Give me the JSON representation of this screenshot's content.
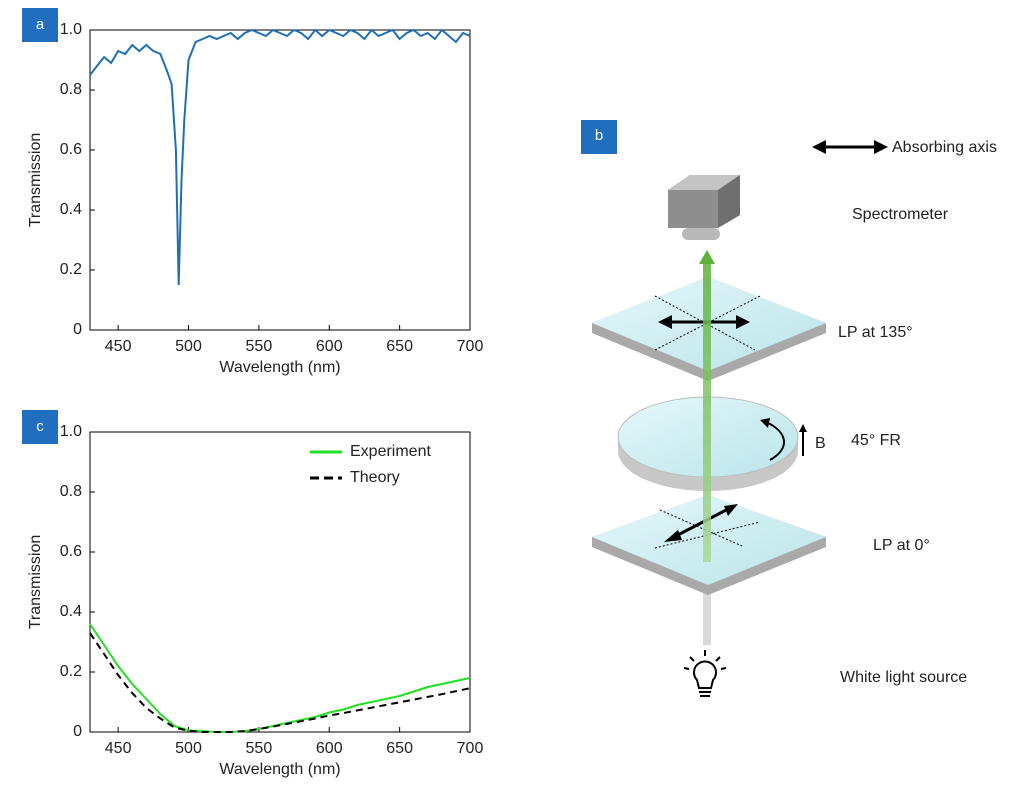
{
  "chart_data": [
    {
      "type": "line",
      "panel_label": "a",
      "xlabel": "Wavelength (nm)",
      "ylabel": "Transmission",
      "xlim": [
        430,
        700
      ],
      "ylim": [
        0,
        1
      ],
      "xticks": [
        450,
        500,
        550,
        600,
        650,
        700
      ],
      "yticks": [
        0,
        0.2,
        0.4,
        0.6,
        0.8,
        {
          "value": 1,
          "label": "1.0"
        }
      ],
      "color": "#1f6fb4",
      "x": [
        430,
        435,
        440,
        445,
        450,
        455,
        460,
        465,
        470,
        475,
        480,
        485,
        488,
        491,
        493,
        495,
        497,
        500,
        505,
        510,
        515,
        520,
        525,
        530,
        535,
        540,
        545,
        550,
        555,
        560,
        565,
        570,
        575,
        580,
        585,
        590,
        595,
        600,
        605,
        610,
        615,
        620,
        625,
        630,
        635,
        640,
        645,
        650,
        655,
        660,
        665,
        670,
        675,
        680,
        685,
        690,
        695,
        700
      ],
      "values": [
        0.85,
        0.88,
        0.91,
        0.89,
        0.93,
        0.92,
        0.95,
        0.93,
        0.95,
        0.93,
        0.92,
        0.86,
        0.82,
        0.6,
        0.15,
        0.5,
        0.7,
        0.9,
        0.96,
        0.97,
        0.98,
        0.97,
        0.98,
        0.99,
        0.97,
        0.99,
        1.0,
        0.99,
        0.98,
        1.0,
        0.99,
        0.98,
        1.0,
        0.99,
        0.97,
        1.0,
        0.98,
        1.0,
        0.99,
        0.98,
        1.0,
        0.99,
        0.97,
        1.0,
        0.98,
        0.99,
        1.0,
        0.97,
        0.99,
        1.0,
        0.98,
        0.99,
        0.97,
        1.0,
        0.98,
        0.96,
        0.99,
        0.98
      ]
    },
    {
      "type": "line",
      "panel_label": "c",
      "xlabel": "Wavelength (nm)",
      "ylabel": "Transmission",
      "xlim": [
        430,
        700
      ],
      "ylim": [
        0,
        1
      ],
      "xticks": [
        450,
        500,
        550,
        600,
        650,
        700
      ],
      "yticks": [
        0,
        0.2,
        0.4,
        0.6,
        0.8,
        {
          "value": 1,
          "label": "1.0"
        }
      ],
      "legend": "upper right",
      "x": [
        430,
        440,
        450,
        460,
        470,
        480,
        490,
        500,
        510,
        520,
        530,
        540,
        550,
        560,
        570,
        580,
        590,
        600,
        610,
        620,
        630,
        640,
        650,
        660,
        670,
        680,
        690,
        700
      ],
      "series": [
        {
          "name": "Experiment",
          "color": "#22e022",
          "dash": false,
          "values": [
            0.36,
            0.29,
            0.22,
            0.16,
            0.11,
            0.06,
            0.02,
            0.005,
            0.003,
            0.0,
            0.0,
            0.003,
            0.01,
            0.02,
            0.03,
            0.04,
            0.05,
            0.065,
            0.075,
            0.09,
            0.1,
            0.11,
            0.12,
            0.135,
            0.15,
            0.16,
            0.17,
            0.18
          ]
        },
        {
          "name": "Theory",
          "color": "#000000",
          "dash": true,
          "values": [
            0.33,
            0.26,
            0.19,
            0.13,
            0.08,
            0.045,
            0.015,
            0.004,
            0.0,
            0.0,
            0.0,
            0.003,
            0.01,
            0.018,
            0.027,
            0.036,
            0.045,
            0.055,
            0.063,
            0.072,
            0.081,
            0.09,
            0.099,
            0.108,
            0.117,
            0.126,
            0.136,
            0.146
          ]
        }
      ]
    }
  ],
  "diagram": {
    "panel_label": "b",
    "legend": "Absorbing axis",
    "field": "B",
    "labels": [
      "Spectrometer",
      "LP at 135°",
      "45° FR",
      "LP at 0°",
      "White light source"
    ]
  }
}
